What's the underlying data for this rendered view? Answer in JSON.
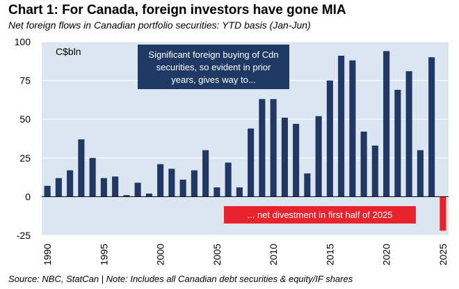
{
  "header": {
    "title": "Chart 1: For Canada, foreign investors have gone MIA",
    "subtitle": "Net foreign flows in Canadian portfolio securities: YTD basis (Jan-Jun)"
  },
  "footer": {
    "source": "Source: NBC, StatCan | Note: Includes all Canadian debt securities & equity/IF shares"
  },
  "colors": {
    "bar": "#1f3864",
    "negative_bar": "#e8232c",
    "panel_bg": "#dce6f1",
    "callout_blue": "#1f3864",
    "callout_red": "#e8232c"
  },
  "chart_data": {
    "type": "bar",
    "unit_label": "C$bln",
    "categories": [
      "1990",
      "1991",
      "1992",
      "1993",
      "1994",
      "1995",
      "1996",
      "1997",
      "1998",
      "1999",
      "2000",
      "2001",
      "2002",
      "2003",
      "2004",
      "2005",
      "2006",
      "2007",
      "2008",
      "2009",
      "2010",
      "2011",
      "2012",
      "2013",
      "2014",
      "2015",
      "2016",
      "2017",
      "2018",
      "2019",
      "2020",
      "2021",
      "2022",
      "2023",
      "2024",
      "2025"
    ],
    "values": [
      7,
      12,
      17,
      37,
      25,
      12,
      13,
      1,
      9,
      2,
      21,
      18,
      11,
      17,
      30,
      6,
      22,
      6,
      44,
      63,
      63,
      51,
      47,
      15,
      52,
      75,
      91,
      88,
      42,
      33,
      94,
      69,
      81,
      30,
      90,
      -22
    ],
    "y_ticks": [
      -25,
      0,
      25,
      50,
      75,
      100
    ],
    "x_tick_labels": [
      "1990",
      "1995",
      "2000",
      "2005",
      "2010",
      "2015",
      "2020",
      "2025"
    ],
    "ylim": [
      -25,
      100
    ],
    "grid": true,
    "annotations": [
      {
        "text_lines": [
          "Significant foreign buying of Cdn",
          "securities, so evident in prior",
          "years, gives way to..."
        ],
        "style": "blue"
      },
      {
        "text_lines": [
          "... net divestment in first half of 2025"
        ],
        "style": "red"
      }
    ]
  }
}
